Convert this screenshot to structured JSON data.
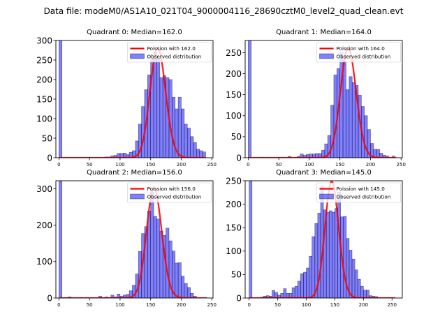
{
  "suptitle": "Data file: modeM0/AS1A10_021T04_9000004116_28690cztM0_level2_quad_clean.evt",
  "chart_data": [
    {
      "type": "bar",
      "title": "Quadrant 0: Median=162.0",
      "median": 162.0,
      "xlim": [
        -5,
        252
      ],
      "ylim": [
        0,
        300
      ],
      "xticks": [
        0,
        50,
        100,
        150,
        200,
        250
      ],
      "yticks": [
        0,
        50,
        100,
        150,
        200,
        250,
        300
      ],
      "bin_width": 5,
      "bins": [
        0,
        20,
        40,
        60,
        75,
        80,
        85,
        90,
        95,
        100,
        105,
        110,
        115,
        120,
        125,
        130,
        135,
        140,
        145,
        150,
        155,
        160,
        165,
        170,
        175,
        180,
        185,
        190,
        195,
        200,
        205,
        210,
        215,
        220,
        225,
        230,
        235
      ],
      "values": [
        400,
        1,
        1,
        1,
        2,
        2,
        5,
        6,
        11,
        11,
        12,
        8,
        14,
        18,
        43,
        86,
        131,
        174,
        212,
        253,
        271,
        255,
        205,
        210,
        205,
        200,
        155,
        125,
        155,
        125,
        86,
        76,
        54,
        39,
        22,
        18,
        15
      ],
      "poisson_label": "Poission with 162.0",
      "observed_label": "Observed distribution",
      "poisson_mean": 162.0,
      "poisson_xmax": 240,
      "legend": "top-right"
    },
    {
      "type": "bar",
      "title": "Quadrant 1: Median=164.0",
      "median": 164.0,
      "xlim": [
        -5,
        252
      ],
      "ylim": [
        0,
        279
      ],
      "xticks": [
        0,
        50,
        100,
        150,
        200,
        250
      ],
      "yticks": [
        0,
        50,
        100,
        150,
        200,
        250
      ],
      "bin_width": 5,
      "bins": [
        0,
        20,
        30,
        45,
        55,
        65,
        75,
        80,
        85,
        90,
        95,
        100,
        105,
        110,
        115,
        120,
        125,
        130,
        135,
        140,
        145,
        150,
        155,
        160,
        165,
        170,
        175,
        180,
        185,
        190,
        195,
        200,
        205,
        210,
        215,
        220,
        225,
        230,
        235
      ],
      "values": [
        400,
        1,
        1,
        1,
        1,
        3,
        1,
        3,
        9,
        6,
        8,
        9,
        9,
        10,
        10,
        18,
        33,
        53,
        125,
        197,
        212,
        251,
        230,
        162,
        193,
        179,
        172,
        149,
        122,
        100,
        67,
        34,
        20,
        20,
        11,
        6,
        4,
        0,
        4
      ],
      "poisson_label": "Poission with 164.0",
      "observed_label": "Observed distribution",
      "poisson_mean": 164.0,
      "poisson_xmax": 242,
      "legend": "top-right"
    },
    {
      "type": "bar",
      "title": "Quadrant 2: Median=156.0",
      "median": 156.0,
      "xlim": [
        -5,
        252
      ],
      "ylim": [
        0,
        322
      ],
      "xticks": [
        0,
        50,
        100,
        150,
        200,
        250
      ],
      "yticks": [
        0,
        100,
        200,
        300
      ],
      "bin_width": 5,
      "bins": [
        0,
        15,
        65,
        75,
        85,
        90,
        95,
        100,
        105,
        110,
        115,
        120,
        125,
        130,
        135,
        140,
        145,
        150,
        155,
        160,
        165,
        170,
        175,
        180,
        185,
        190,
        195,
        200,
        205,
        210,
        215,
        220
      ],
      "values": [
        400,
        3,
        5,
        3,
        8,
        3,
        11,
        5,
        8,
        10,
        20,
        35,
        66,
        128,
        177,
        196,
        239,
        290,
        224,
        217,
        184,
        172,
        192,
        157,
        129,
        96,
        97,
        60,
        40,
        29,
        13,
        5
      ],
      "poisson_label": "Poission with 156.0",
      "observed_label": "Observed distribution",
      "poisson_mean": 156.0,
      "poisson_xmax": 242,
      "legend": "top-right"
    },
    {
      "type": "bar",
      "title": "Quadrant 3: Median=145.0",
      "median": 145.0,
      "xlim": [
        -7,
        268
      ],
      "ylim": [
        0,
        250
      ],
      "xticks": [
        0,
        50,
        100,
        150,
        200,
        250
      ],
      "yticks": [
        0,
        50,
        100,
        150,
        200,
        250
      ],
      "bin_width": 5,
      "bins": [
        0,
        20,
        25,
        30,
        35,
        40,
        45,
        50,
        55,
        60,
        65,
        70,
        75,
        80,
        85,
        90,
        95,
        100,
        105,
        110,
        115,
        120,
        125,
        130,
        135,
        140,
        145,
        150,
        155,
        160,
        165,
        170,
        175,
        180,
        185,
        190,
        195,
        200,
        205,
        210,
        215,
        220
      ],
      "values": [
        400,
        2,
        4,
        5,
        4,
        16,
        12,
        6,
        10,
        20,
        10,
        10,
        22,
        25,
        36,
        52,
        55,
        64,
        89,
        131,
        159,
        181,
        239,
        188,
        183,
        186,
        183,
        191,
        226,
        173,
        174,
        127,
        102,
        83,
        60,
        40,
        25,
        17,
        17,
        5,
        4,
        3
      ],
      "poisson_label": "Poission with 145.0",
      "observed_label": "Observed distribution",
      "poisson_mean": 145.0,
      "poisson_xmax": 256,
      "legend": "top-right"
    }
  ]
}
